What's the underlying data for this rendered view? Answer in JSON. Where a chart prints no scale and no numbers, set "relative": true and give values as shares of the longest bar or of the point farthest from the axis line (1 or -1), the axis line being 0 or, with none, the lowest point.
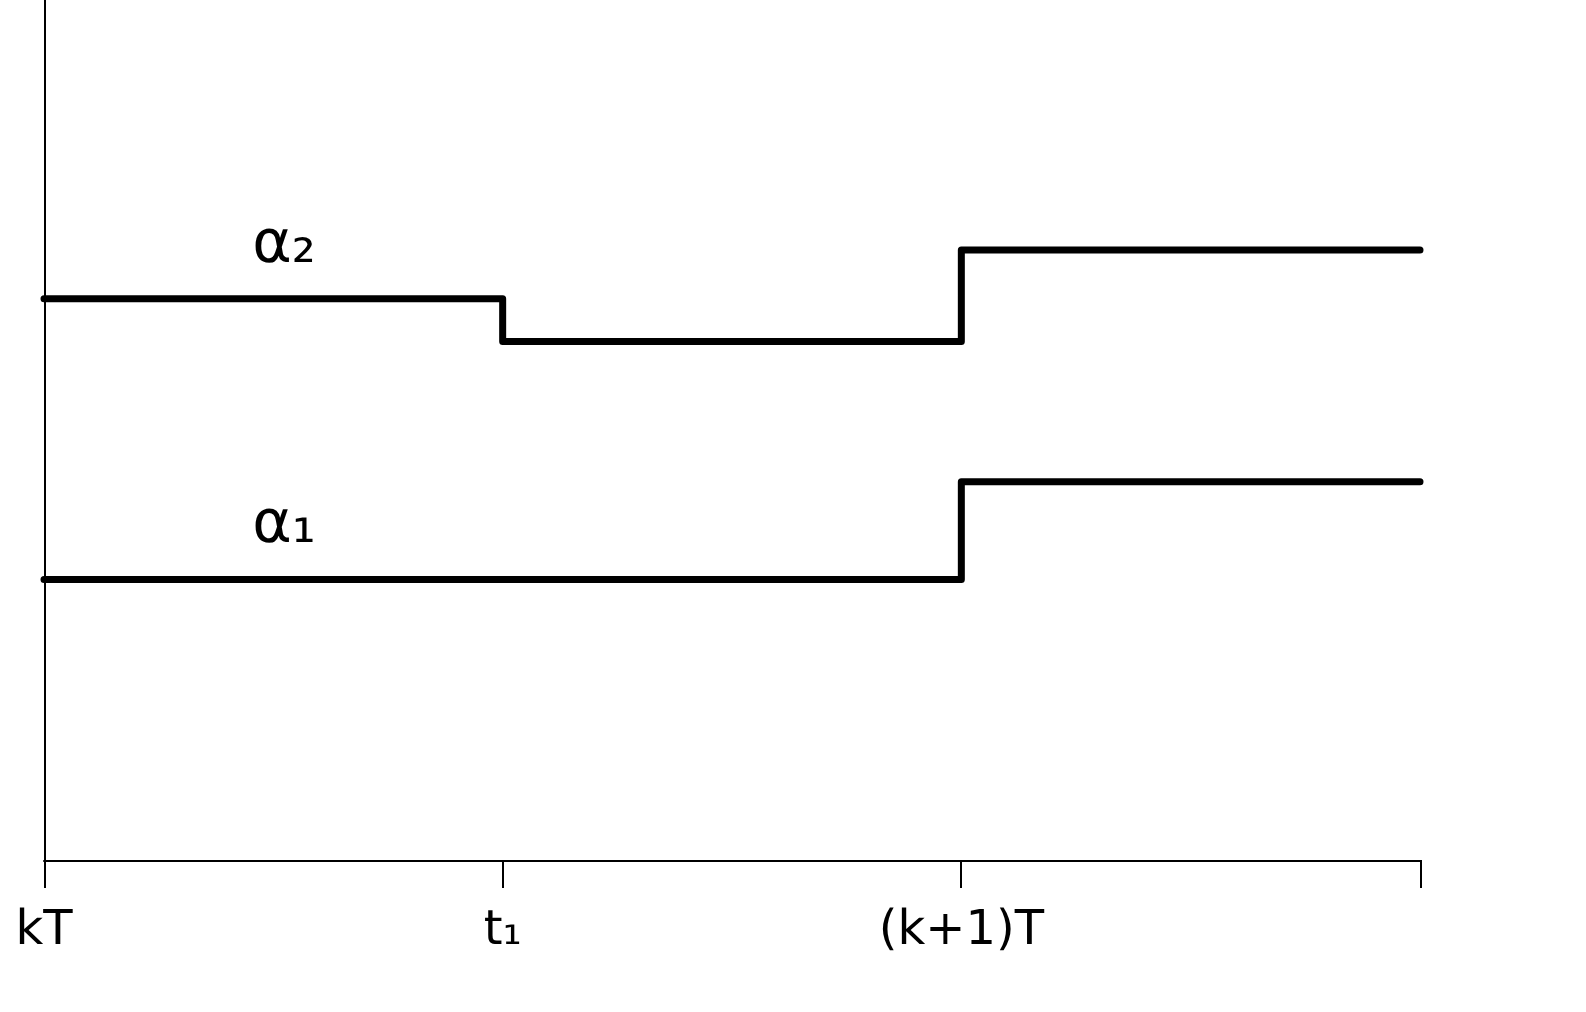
{
  "chart_data": {
    "type": "step",
    "relative": true,
    "categories": [
      "kT",
      "t₁",
      "(k+1)T",
      null
    ],
    "series": [
      {
        "name": "α₂",
        "color": "#000000",
        "values": [
          0.92,
          0.85,
          1,
          1
        ]
      },
      {
        "name": "α₁",
        "color": "#000000",
        "values": [
          0.46,
          0.46,
          0.62,
          0.62
        ]
      }
    ],
    "legend": false,
    "grid": false,
    "marker": "none",
    "line_style": "solid"
  }
}
